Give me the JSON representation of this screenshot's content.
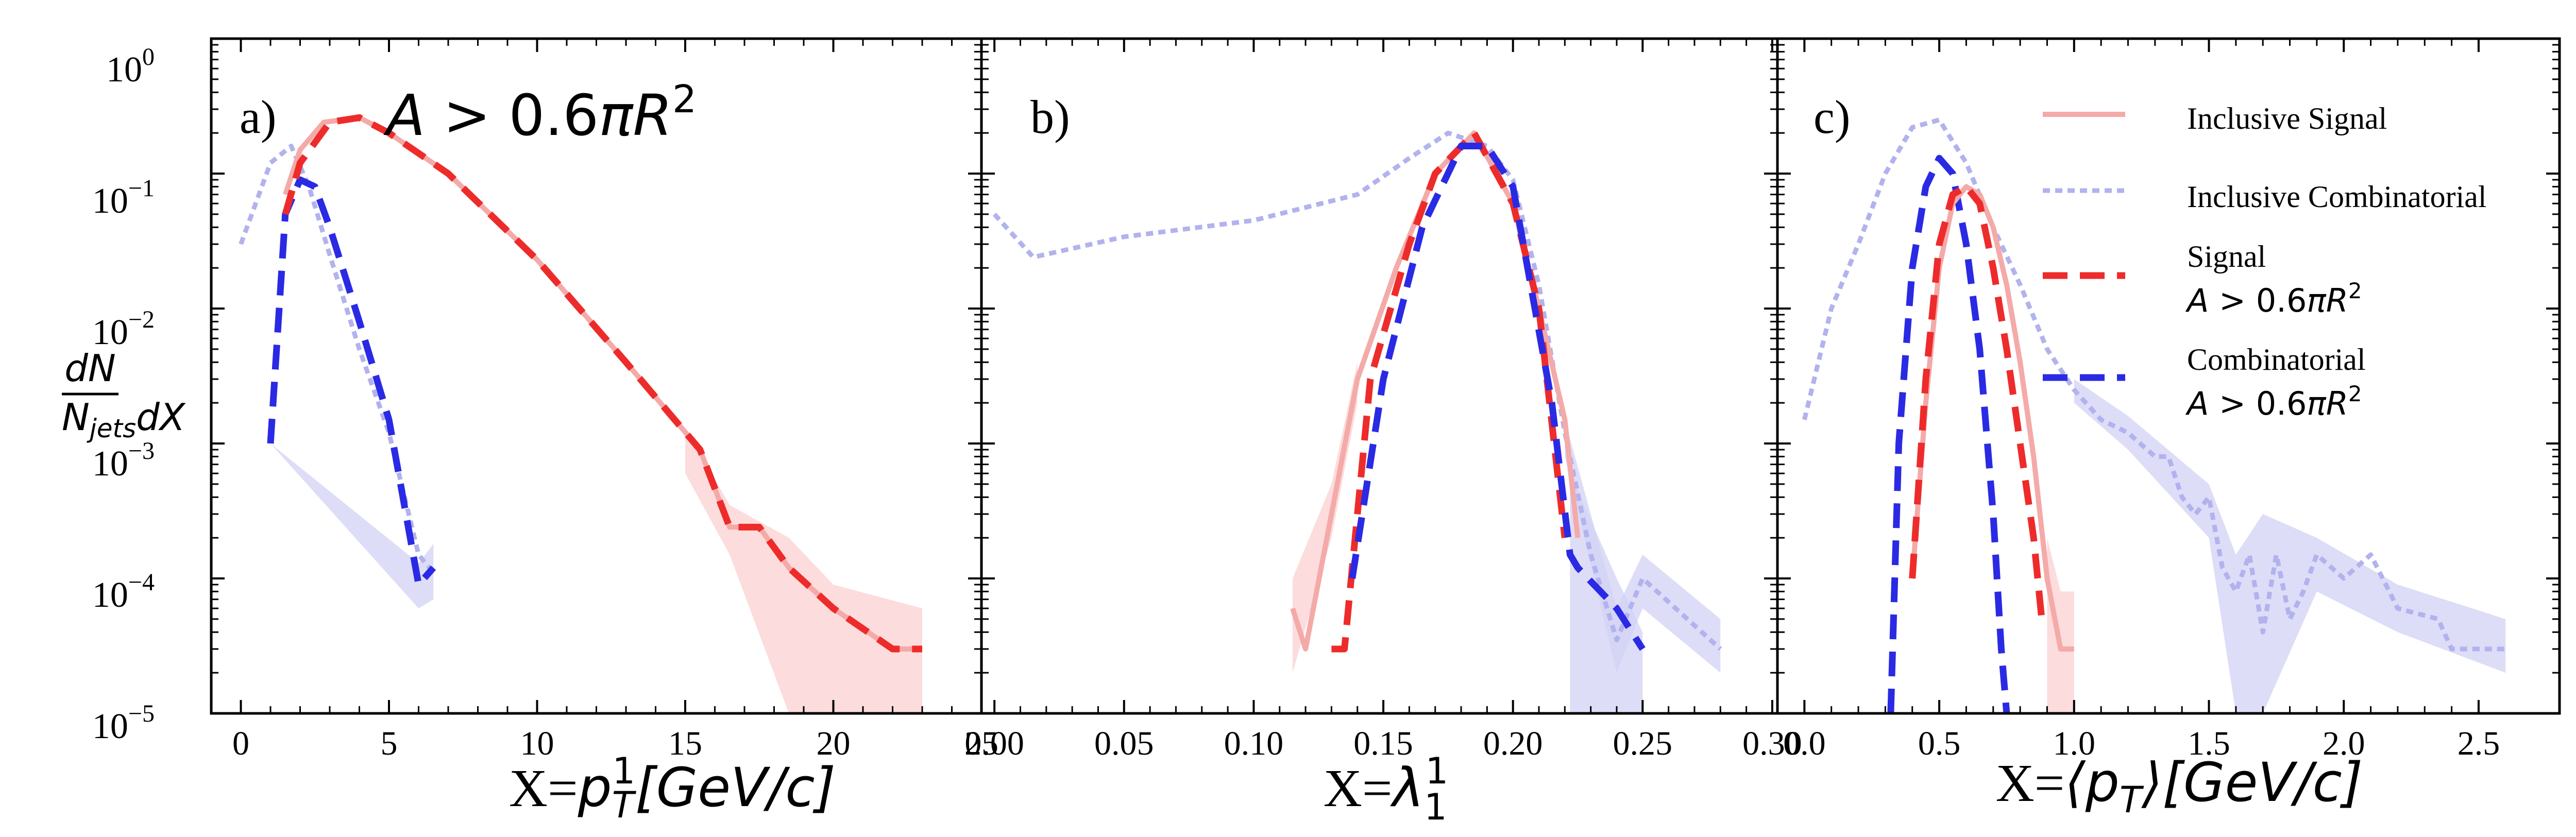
{
  "figure": {
    "ylabel_num": "dN",
    "ylabel_den": "N",
    "ylabel_den_sub": "jets",
    "ylabel_den_tail": "dX",
    "yticks": [
      {
        "base": "10",
        "exp": "0"
      },
      {
        "base": "10",
        "exp": "−1"
      },
      {
        "base": "10",
        "exp": "−2"
      },
      {
        "base": "10",
        "exp": "−3"
      },
      {
        "base": "10",
        "exp": "−4"
      },
      {
        "base": "10",
        "exp": "−5"
      }
    ],
    "area_cut": {
      "pre": "A",
      "mid": " > 0.6",
      "pi": "π",
      "R": "R",
      "exp": "2"
    }
  },
  "legend": {
    "inclusive_signal": "Inclusive Signal",
    "inclusive_combinatorial": "Inclusive Combinatorial",
    "signal": "Signal",
    "combinatorial": "Combinatorial"
  },
  "colors": {
    "inclusive_signal": "#f4aaa8",
    "inclusive_combinatorial": "#b2b2ee",
    "signal": "#ee2b2b",
    "combinatorial": "#2a2ae4",
    "signal_band": "#fbd0d0",
    "combinatorial_band": "#d2d2f6"
  },
  "chart_data": [
    {
      "type": "line",
      "panel": "a)",
      "xlabel_prefix": "X=",
      "xlabel_var": "p",
      "xlabel_sub": "T",
      "xlabel_sup": "1",
      "xlabel_unit": "[GeV/c]",
      "xlim": [
        -1,
        25
      ],
      "ylim": [
        1e-05,
        1
      ],
      "y_scale": "log",
      "xticks": [
        0,
        5,
        10,
        15,
        20,
        25
      ],
      "xtick_labels": [
        "0",
        "5",
        "10",
        "15",
        "20",
        "25"
      ],
      "annotation": "A > 0.6πR²",
      "series": [
        {
          "name": "Inclusive Combinatorial",
          "style": "dotted",
          "x": [
            0,
            1,
            1.7,
            2.3,
            3,
            4,
            5,
            6,
            6.5
          ],
          "y": [
            0.03,
            0.12,
            0.16,
            0.08,
            0.025,
            0.005,
            0.0012,
            0.00015,
            0.00011
          ]
        },
        {
          "name": "Combinatorial",
          "style": "dashed",
          "x": [
            1,
            1.5,
            2,
            2.5,
            3,
            4,
            5,
            6,
            6.5
          ],
          "y": [
            0.001,
            0.05,
            0.09,
            0.08,
            0.04,
            0.008,
            0.0015,
            9e-05,
            0.00012
          ],
          "band": [
            [
              1,
              0.001,
              0.001
            ],
            [
              6,
              6e-05,
              0.00013
            ],
            [
              6.5,
              7e-05,
              0.00018
            ]
          ]
        },
        {
          "name": "Inclusive Signal",
          "style": "solid",
          "x": [
            1.5,
            2,
            2.8,
            4,
            5,
            7,
            10,
            13,
            15.5,
            16.5,
            17.5,
            18.5,
            20,
            22,
            23
          ],
          "y": [
            0.07,
            0.15,
            0.24,
            0.26,
            0.2,
            0.1,
            0.023,
            0.004,
            0.0009,
            0.00024,
            0.00024,
            0.00012,
            6e-05,
            3e-05,
            3e-05
          ]
        },
        {
          "name": "Signal A > 0.6πR²",
          "style": "dashed",
          "x": [
            1.5,
            2,
            3,
            4,
            5,
            7,
            10,
            13,
            15.5,
            16.5,
            17.5,
            18.5,
            20,
            22,
            23
          ],
          "y": [
            0.05,
            0.12,
            0.24,
            0.26,
            0.2,
            0.1,
            0.023,
            0.004,
            0.0009,
            0.00024,
            0.00024,
            0.00012,
            6e-05,
            3e-05,
            3e-05
          ],
          "band": [
            [
              15,
              0.0006,
              0.0013
            ],
            [
              16.5,
              0.00015,
              0.00035
            ],
            [
              18.5,
              1e-05,
              0.0002
            ],
            [
              20,
              1e-05,
              9e-05
            ],
            [
              23,
              1e-05,
              6e-05
            ]
          ]
        }
      ]
    },
    {
      "type": "line",
      "panel": "b)",
      "xlabel_prefix": "X=",
      "xlabel_var": "λ",
      "xlabel_sub": "1",
      "xlabel_sup": "1",
      "xlabel_unit": "",
      "xlim": [
        -0.005,
        0.302
      ],
      "ylim": [
        1e-05,
        1
      ],
      "y_scale": "log",
      "xticks": [
        0,
        0.05,
        0.1,
        0.15,
        0.2,
        0.25,
        0.3
      ],
      "xtick_labels": [
        "0.00",
        "0.05",
        "0.10",
        "0.15",
        "0.20",
        "0.25",
        "0.30"
      ],
      "series": [
        {
          "name": "Inclusive Combinatorial",
          "style": "dotted",
          "x": [
            0,
            0.015,
            0.05,
            0.1,
            0.14,
            0.16,
            0.175,
            0.19,
            0.2,
            0.21,
            0.22,
            0.23,
            0.24,
            0.25,
            0.28
          ],
          "y": [
            0.05,
            0.024,
            0.034,
            0.045,
            0.07,
            0.13,
            0.2,
            0.16,
            0.09,
            0.015,
            0.0012,
            0.00015,
            3.5e-05,
            0.0001,
            3e-05
          ],
          "band": [
            [
              0.22,
              0.0008,
              0.0015
            ],
            [
              0.24,
              2e-05,
              6e-05
            ],
            [
              0.25,
              6e-05,
              0.00015
            ],
            [
              0.28,
              2e-05,
              5e-05
            ]
          ]
        },
        {
          "name": "Inclusive Signal",
          "style": "solid",
          "x": [
            0.115,
            0.12,
            0.13,
            0.14,
            0.155,
            0.17,
            0.185,
            0.2,
            0.21,
            0.22,
            0.225
          ],
          "y": [
            6e-05,
            3e-05,
            0.0003,
            0.003,
            0.02,
            0.1,
            0.2,
            0.06,
            0.01,
            0.0015,
            0.0002
          ],
          "band": [
            [
              0.115,
              2e-05,
              0.0001
            ],
            [
              0.13,
              0.0002,
              0.0005
            ],
            [
              0.14,
              0.002,
              0.004
            ]
          ]
        },
        {
          "name": "Signal A > 0.6πR²",
          "style": "dashed",
          "x": [
            0.13,
            0.135,
            0.145,
            0.16,
            0.17,
            0.185,
            0.2,
            0.21,
            0.22
          ],
          "y": [
            3e-05,
            3e-05,
            0.003,
            0.03,
            0.1,
            0.2,
            0.06,
            0.01,
            0.0002
          ]
        },
        {
          "name": "Combinatorial",
          "style": "dashed",
          "x": [
            0.138,
            0.15,
            0.165,
            0.18,
            0.19,
            0.2,
            0.215,
            0.222,
            0.225,
            0.24,
            0.25
          ],
          "y": [
            0.0001,
            0.003,
            0.04,
            0.16,
            0.16,
            0.08,
            0.002,
            0.00015,
            0.00012,
            6e-05,
            3e-05
          ],
          "band": [
            [
              0.222,
              1e-05,
              0.0006
            ],
            [
              0.24,
              1e-05,
              0.0001
            ],
            [
              0.25,
              1e-05,
              4e-05
            ]
          ]
        }
      ]
    },
    {
      "type": "line",
      "panel": "c)",
      "xlabel_prefix": "X=",
      "xlabel_var": "⟨p",
      "xlabel_sub": "T",
      "xlabel_sup": "",
      "xlabel_unit": "⟩[GeV/c]",
      "xlim": [
        -0.1,
        2.8
      ],
      "ylim": [
        1e-05,
        1
      ],
      "y_scale": "log",
      "xticks": [
        0,
        0.5,
        1,
        1.5,
        2,
        2.5
      ],
      "xtick_labels": [
        "0.0",
        "0.5",
        "1.0",
        "1.5",
        "2.0",
        "2.5"
      ],
      "series": [
        {
          "name": "Inclusive Combinatorial",
          "style": "dotted",
          "x": [
            0,
            0.1,
            0.2,
            0.3,
            0.4,
            0.5,
            0.6,
            0.7,
            0.8,
            0.9,
            1.0,
            1.1,
            1.2,
            1.3,
            1.35,
            1.4,
            1.45,
            1.5,
            1.55,
            1.6,
            1.65,
            1.7,
            1.75,
            1.8,
            1.85,
            1.9,
            2.0,
            2.1,
            2.2,
            2.35,
            2.4,
            2.6
          ],
          "y": [
            0.0015,
            0.01,
            0.03,
            0.1,
            0.22,
            0.25,
            0.12,
            0.04,
            0.015,
            0.005,
            0.0025,
            0.0015,
            0.0012,
            0.0008,
            0.0008,
            0.0004,
            0.0003,
            0.0004,
            0.00012,
            8e-05,
            0.00015,
            4e-05,
            0.00015,
            5e-05,
            8e-05,
            0.00015,
            0.0001,
            0.00015,
            6e-05,
            5e-05,
            3e-05,
            3e-05
          ],
          "band": [
            [
              1.0,
              0.002,
              0.003
            ],
            [
              1.2,
              0.0009,
              0.0016
            ],
            [
              1.5,
              0.0002,
              0.0005
            ],
            [
              1.6,
              1e-05,
              0.00015
            ],
            [
              1.7,
              1e-05,
              0.0003
            ],
            [
              1.9,
              8e-05,
              0.0002
            ],
            [
              2.2,
              4e-05,
              9e-05
            ],
            [
              2.6,
              2e-05,
              5e-05
            ]
          ]
        },
        {
          "name": "Combinatorial",
          "style": "dashed",
          "x": [
            0.32,
            0.35,
            0.4,
            0.45,
            0.5,
            0.55,
            0.6,
            0.65,
            0.7,
            0.73,
            0.75
          ],
          "y": [
            1e-05,
            0.001,
            0.02,
            0.08,
            0.13,
            0.1,
            0.03,
            0.005,
            0.0003,
            3e-05,
            1e-05
          ]
        },
        {
          "name": "Inclusive Signal",
          "style": "solid",
          "x": [
            0.4,
            0.45,
            0.5,
            0.55,
            0.6,
            0.65,
            0.7,
            0.75,
            0.8,
            0.85,
            0.9,
            0.95,
            1.0
          ],
          "y": [
            0.0001,
            0.002,
            0.02,
            0.06,
            0.08,
            0.07,
            0.04,
            0.015,
            0.004,
            0.0008,
            0.0001,
            3e-05,
            3e-05
          ],
          "band": [
            [
              0.9,
              1e-05,
              0.0002
            ],
            [
              0.95,
              1e-05,
              8e-05
            ],
            [
              1.0,
              1e-05,
              8e-05
            ]
          ]
        },
        {
          "name": "Signal A > 0.6πR²",
          "style": "dashed",
          "x": [
            0.4,
            0.45,
            0.5,
            0.55,
            0.6,
            0.65,
            0.7,
            0.75,
            0.8,
            0.85,
            0.88
          ],
          "y": [
            0.0001,
            0.003,
            0.03,
            0.07,
            0.08,
            0.06,
            0.02,
            0.005,
            0.001,
            0.0002,
            5e-05
          ]
        }
      ]
    }
  ]
}
